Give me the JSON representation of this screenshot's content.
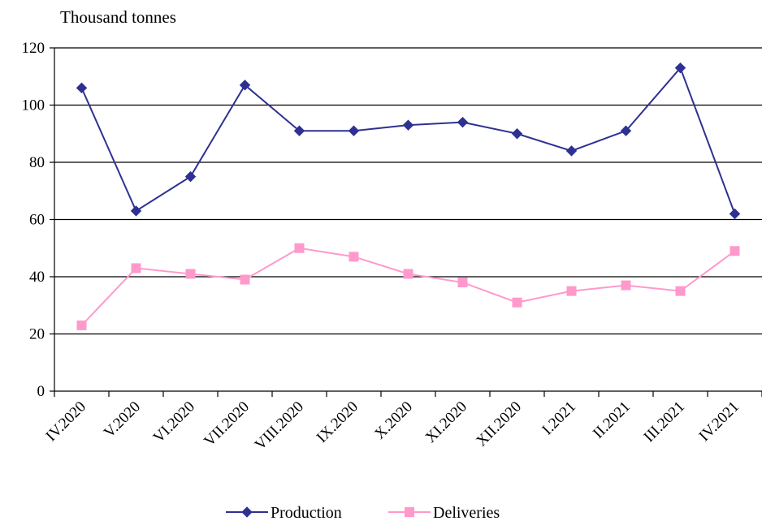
{
  "chart_data": {
    "type": "line",
    "ylabel": "Thousand tonnes",
    "xlabel": "",
    "title": "",
    "ylim": [
      0,
      120
    ],
    "yticks": [
      0,
      20,
      40,
      60,
      80,
      100,
      120
    ],
    "grid": true,
    "legend_position": "bottom-center",
    "categories": [
      "IV.2020",
      "V.2020",
      "VI.2020",
      "VII.2020",
      "VIII.2020",
      "IX.2020",
      "X.2020",
      "XI.2020",
      "XII.2020",
      "I.2021",
      "II.2021",
      "III.2021",
      "IV.2021"
    ],
    "series": [
      {
        "name": "Production",
        "color": "#2e3192",
        "marker": "diamond",
        "values": [
          106,
          63,
          75,
          107,
          91,
          91,
          93,
          94,
          90,
          84,
          91,
          113,
          62
        ]
      },
      {
        "name": "Deliveries",
        "color": "#ff99cc",
        "marker": "square",
        "values": [
          23,
          43,
          41,
          39,
          50,
          47,
          41,
          38,
          31,
          35,
          37,
          35,
          49
        ]
      }
    ]
  }
}
